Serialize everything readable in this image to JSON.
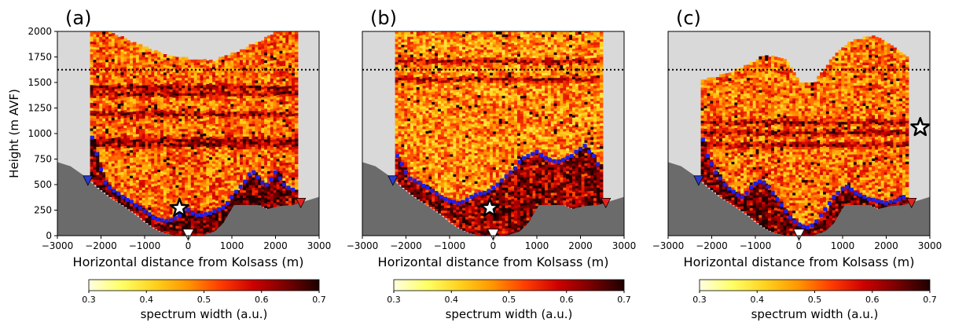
{
  "figure": {
    "ylabel": "Height (m AVF)",
    "xlabel": "Horizontal distance from Kolsass (m)",
    "colorbar": {
      "label": "spectrum width (a.u.)",
      "vmin": 0.3,
      "vmax": 0.7,
      "ticks": [
        "0.3",
        "0.4",
        "0.5",
        "0.6",
        "0.7"
      ],
      "stops": [
        "#ffffe0",
        "#ffff66",
        "#ffd21e",
        "#ff9600",
        "#ff3c00",
        "#cd0000",
        "#780000",
        "#1e0000"
      ]
    },
    "colors": {
      "background": "#d9d9d9",
      "terrain": "#6b6b6b",
      "markers": "#1f1fe6",
      "west_triangle": "#2a3bd1",
      "east_triangle": "#e8221c",
      "reference_line": "#000000"
    }
  },
  "chart_data": [
    {
      "type": "heatmap",
      "panel_label": "(a)",
      "xlim": [
        -3000,
        3000
      ],
      "ylim": [
        0,
        2000
      ],
      "xticks": [
        "−3000",
        "−2000",
        "−1000",
        "0",
        "1000",
        "2000",
        "3000"
      ],
      "yticks": [
        "0",
        "250",
        "500",
        "750",
        "1000",
        "1250",
        "1500",
        "1750",
        "2000"
      ],
      "reference_height": 1625,
      "data_x_range": [
        -2250,
        2500
      ],
      "field_top_profile": [
        [
          -2250,
          2000
        ],
        [
          -1900,
          2000
        ],
        [
          -1500,
          1920
        ],
        [
          -1000,
          1830
        ],
        [
          -500,
          1760
        ],
        [
          0,
          1720
        ],
        [
          500,
          1700
        ],
        [
          1000,
          1780
        ],
        [
          1500,
          1870
        ],
        [
          2000,
          1990
        ],
        [
          2500,
          2000
        ]
      ],
      "dark_band_heights": [
        880,
        930,
        1180,
        1380,
        1440
      ],
      "field_intensity": 0.45,
      "marker_boundary": {
        "x": [
          -2200,
          -2100,
          -2000,
          -1900,
          -1800,
          -1700,
          -1600,
          -1500,
          -1400,
          -1300,
          -1200,
          -1100,
          -1000,
          -900,
          -800,
          -700,
          -600,
          -500,
          -400,
          -300,
          -200,
          -100,
          0,
          100,
          200,
          300,
          400,
          500,
          600,
          700,
          800,
          900,
          1000,
          1100,
          1200,
          1300,
          1400,
          1500,
          1600,
          1700,
          1800,
          1900,
          2000,
          2100,
          2200,
          2300,
          2400
        ],
        "y": [
          960,
          800,
          650,
          520,
          470,
          440,
          410,
          380,
          350,
          330,
          300,
          270,
          240,
          210,
          180,
          160,
          150,
          145,
          150,
          170,
          200,
          230,
          250,
          220,
          200,
          200,
          210,
          220,
          240,
          260,
          280,
          320,
          380,
          430,
          480,
          530,
          600,
          620,
          570,
          520,
          500,
          550,
          620,
          560,
          500,
          470,
          450
        ]
      },
      "star": {
        "x": -200,
        "y": 270,
        "size": "large"
      },
      "west_site": {
        "x": -2300,
        "y": 540
      },
      "east_site": {
        "x": 2580,
        "y": 320
      },
      "valley_site": {
        "x": 0,
        "y": 10
      }
    },
    {
      "type": "heatmap",
      "panel_label": "(b)",
      "xlim": [
        -3000,
        3000
      ],
      "ylim": [
        0,
        2000
      ],
      "xticks": [
        "−3000",
        "−2000",
        "−1000",
        "0",
        "1000",
        "2000",
        "3000"
      ],
      "yticks": [],
      "reference_height": 1625,
      "data_x_range": [
        -2250,
        2500
      ],
      "field_top_profile": [
        [
          -2250,
          2000
        ],
        [
          2500,
          2000
        ]
      ],
      "dark_band_heights": [
        1520,
        1700
      ],
      "field_intensity": 0.35,
      "marker_boundary": {
        "x": [
          -2200,
          -2100,
          -2000,
          -1900,
          -1800,
          -1700,
          -1600,
          -1500,
          -1400,
          -1300,
          -1200,
          -1100,
          -1000,
          -900,
          -800,
          -700,
          -600,
          -500,
          -400,
          -300,
          -200,
          -100,
          0,
          100,
          200,
          300,
          400,
          500,
          600,
          700,
          800,
          900,
          1000,
          1100,
          1200,
          1300,
          1400,
          1500,
          1600,
          1700,
          1800,
          1900,
          2000,
          2100,
          2200,
          2300,
          2400
        ],
        "y": [
          780,
          700,
          620,
          560,
          540,
          520,
          490,
          470,
          440,
          410,
          380,
          360,
          340,
          330,
          320,
          330,
          350,
          380,
          400,
          410,
          420,
          440,
          470,
          500,
          540,
          580,
          620,
          660,
          720,
          760,
          780,
          800,
          820,
          790,
          760,
          740,
          730,
          720,
          740,
          760,
          780,
          820,
          850,
          880,
          820,
          780,
          700
        ]
      },
      "star": {
        "x": -80,
        "y": 270,
        "size": "large"
      },
      "west_site": {
        "x": -2300,
        "y": 540
      },
      "east_site": {
        "x": 2580,
        "y": 320
      },
      "valley_site": {
        "x": 0,
        "y": 10
      }
    },
    {
      "type": "heatmap",
      "panel_label": "(c)",
      "xlim": [
        -3000,
        3000
      ],
      "ylim": [
        0,
        2000
      ],
      "xticks": [
        "−3000",
        "−2000",
        "−1000",
        "0",
        "1000",
        "2000",
        "3000"
      ],
      "yticks": [],
      "reference_height": 1625,
      "data_x_range": [
        -2250,
        2500
      ],
      "field_top_profile": [
        [
          -2250,
          1520
        ],
        [
          -1800,
          1560
        ],
        [
          -1300,
          1640
        ],
        [
          -800,
          1760
        ],
        [
          -300,
          1700
        ],
        [
          0,
          1480
        ],
        [
          300,
          1480
        ],
        [
          700,
          1720
        ],
        [
          1100,
          1880
        ],
        [
          1600,
          1950
        ],
        [
          2000,
          1880
        ],
        [
          2500,
          1720
        ]
      ],
      "dark_band_heights": [
        1100,
        1000,
        880
      ],
      "field_intensity": 0.42,
      "marker_boundary": {
        "x": [
          -2200,
          -2100,
          -2000,
          -1900,
          -1800,
          -1700,
          -1600,
          -1500,
          -1400,
          -1300,
          -1200,
          -1100,
          -1000,
          -900,
          -800,
          -700,
          -600,
          -500,
          -400,
          -300,
          -200,
          -100,
          0,
          100,
          200,
          300,
          400,
          500,
          600,
          700,
          800,
          900,
          1000,
          1100,
          1200,
          1300,
          1400,
          1500,
          1600,
          1700,
          1800,
          1900,
          2000,
          2100,
          2200,
          2300,
          2400
        ],
        "y": [
          940,
          780,
          700,
          620,
          560,
          500,
          460,
          430,
          400,
          380,
          420,
          470,
          510,
          530,
          520,
          480,
          420,
          360,
          300,
          240,
          180,
          140,
          110,
          90,
          80,
          100,
          140,
          200,
          260,
          320,
          380,
          420,
          460,
          480,
          450,
          420,
          400,
          380,
          360,
          350,
          340,
          330,
          320,
          330,
          340,
          360,
          380
        ]
      },
      "star": {
        "x": 2780,
        "y": 1060,
        "size": "large"
      },
      "west_site": {
        "x": -2300,
        "y": 540
      },
      "east_site": {
        "x": 2580,
        "y": 320
      },
      "valley_site": {
        "x": 0,
        "y": 10
      }
    }
  ]
}
